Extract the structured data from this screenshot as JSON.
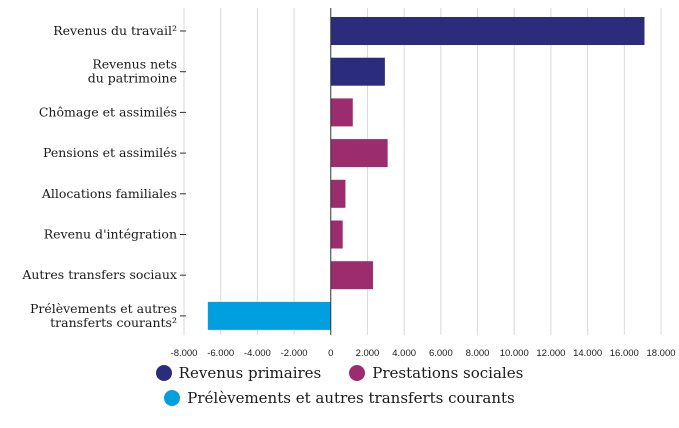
{
  "chart_data": {
    "type": "bar",
    "orientation": "horizontal",
    "categories": [
      [
        "Revenus du travail²"
      ],
      [
        "Revenus nets",
        "du patrimoine"
      ],
      [
        "Chômage et assimilés"
      ],
      [
        "Pensions et assimilés"
      ],
      [
        "Allocations familiales"
      ],
      [
        "Revenu d'intégration"
      ],
      [
        "Autres transfers sociaux"
      ],
      [
        "Prélèvements et autres",
        "transferts courants²"
      ]
    ],
    "values": [
      17100,
      2950,
      1200,
      3100,
      800,
      650,
      2300,
      -6700
    ],
    "bar_groups": [
      0,
      0,
      1,
      1,
      1,
      1,
      1,
      2
    ],
    "xlim": [
      -8000,
      18000
    ],
    "xticks": [
      -8000,
      -6000,
      -4000,
      -2000,
      0,
      2000,
      4000,
      6000,
      8000,
      10000,
      12000,
      14000,
      16000,
      18000
    ],
    "xtick_labels": [
      "-8.000",
      "-6.000",
      "-4.000",
      "-2.000",
      "0",
      "2.000",
      "4.000",
      "6.000",
      "8.000",
      "10.000",
      "12.000",
      "14.000",
      "16.000",
      "18.000"
    ],
    "gridlines": "vertical",
    "legend_placement": "bottom-center",
    "series": [
      {
        "name": "Revenus primaires",
        "color": "#2b2d7c"
      },
      {
        "name": "Prestations sociales",
        "color": "#9b2d6e"
      },
      {
        "name": "Prélèvements et autres transferts courants",
        "color": "#009fdf"
      }
    ]
  },
  "legend": {
    "item1": "Revenus primaires",
    "item2": "Prestations sociales",
    "item3": "Prélèvements et autres transferts courants"
  }
}
